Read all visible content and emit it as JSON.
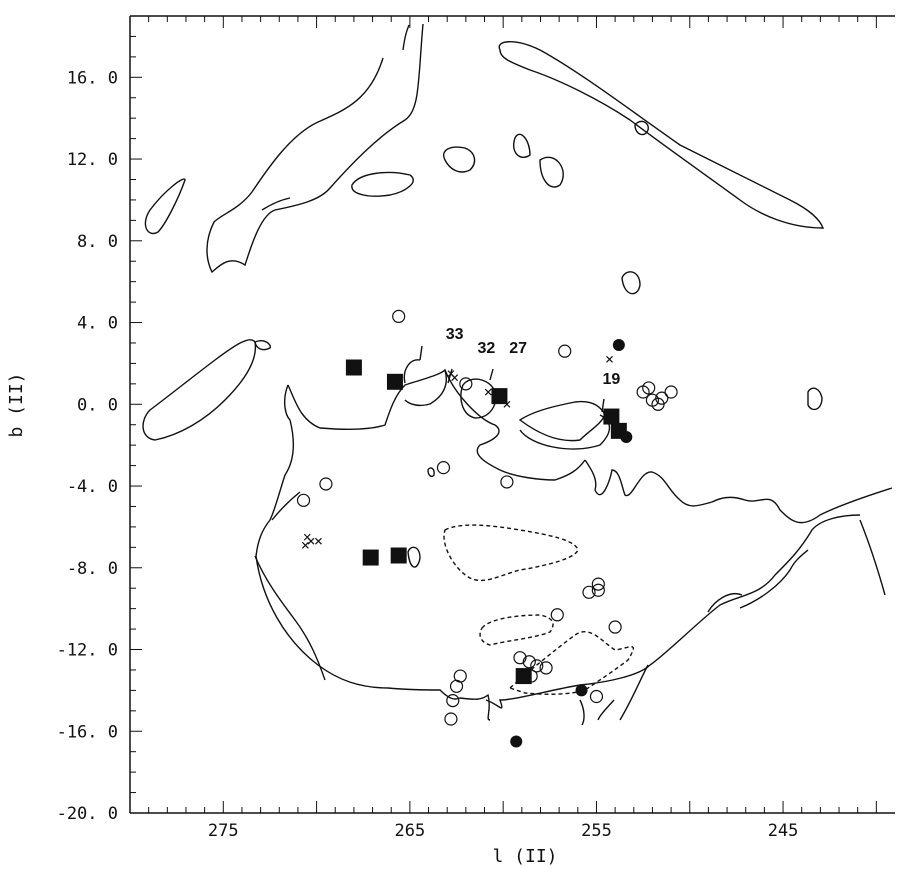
{
  "chart_data": {
    "type": "scatter",
    "title": "",
    "xlabel": "l (II)",
    "ylabel": "b (II)",
    "xlim": [
      280,
      239
    ],
    "ylim": [
      -20,
      19
    ],
    "x_ticks": [
      {
        "value": 275,
        "label": "275"
      },
      {
        "value": 265,
        "label": "265"
      },
      {
        "value": 255,
        "label": "255"
      },
      {
        "value": 245,
        "label": "245"
      }
    ],
    "y_ticks": [
      {
        "value": 16,
        "label": "16. 0"
      },
      {
        "value": 12,
        "label": "12. 0"
      },
      {
        "value": 8,
        "label": "8. 0"
      },
      {
        "value": 4,
        "label": "4. 0"
      },
      {
        "value": 0,
        "label": "0. 0"
      },
      {
        "value": -4,
        "label": "-4. 0"
      },
      {
        "value": -8,
        "label": "-8. 0"
      },
      {
        "value": -12,
        "label": "-12. 0"
      },
      {
        "value": -16,
        "label": "-16. 0"
      },
      {
        "value": -20,
        "label": "-20. 0"
      }
    ],
    "series": [
      {
        "marker": "filled-square",
        "points": [
          [
            268.0,
            1.8
          ],
          [
            265.8,
            1.1
          ],
          [
            260.2,
            0.4
          ],
          [
            254.2,
            -0.6
          ],
          [
            253.8,
            -1.3
          ],
          [
            267.1,
            -7.5
          ],
          [
            265.6,
            -7.4
          ],
          [
            258.9,
            -13.3
          ]
        ]
      },
      {
        "marker": "filled-circle",
        "points": [
          [
            253.8,
            2.9
          ],
          [
            253.4,
            -1.6
          ],
          [
            255.8,
            -14.0
          ],
          [
            259.3,
            -16.5
          ]
        ]
      },
      {
        "marker": "open-circle",
        "points": [
          [
            265.6,
            4.3
          ],
          [
            262.0,
            1.0
          ],
          [
            256.7,
            2.6
          ],
          [
            252.5,
            0.6
          ],
          [
            252.2,
            0.8
          ],
          [
            252.0,
            0.2
          ],
          [
            251.7,
            0.0
          ],
          [
            251.5,
            0.3
          ],
          [
            251.0,
            0.6
          ],
          [
            263.2,
            -3.1
          ],
          [
            259.8,
            -3.8
          ],
          [
            269.5,
            -3.9
          ],
          [
            270.7,
            -4.7
          ],
          [
            259.1,
            -12.4
          ],
          [
            258.6,
            -12.6
          ],
          [
            258.2,
            -12.8
          ],
          [
            257.7,
            -12.9
          ],
          [
            258.5,
            -13.3
          ],
          [
            257.1,
            -10.3
          ],
          [
            255.4,
            -9.2
          ],
          [
            254.9,
            -8.8
          ],
          [
            254.9,
            -9.1
          ],
          [
            254.0,
            -10.9
          ],
          [
            262.3,
            -13.3
          ],
          [
            262.5,
            -13.8
          ],
          [
            262.7,
            -14.5
          ],
          [
            262.8,
            -15.4
          ],
          [
            255.0,
            -14.3
          ]
        ]
      },
      {
        "marker": "cross",
        "points": [
          [
            262.8,
            1.5
          ],
          [
            262.6,
            1.3
          ],
          [
            260.8,
            0.6
          ],
          [
            259.8,
            0.0
          ],
          [
            254.3,
            2.2
          ],
          [
            270.5,
            -6.5
          ],
          [
            270.3,
            -6.7
          ],
          [
            270.6,
            -6.9
          ],
          [
            269.9,
            -6.7
          ]
        ]
      }
    ],
    "annotations": [
      {
        "text": "33",
        "x": 262.6,
        "y": 3.2
      },
      {
        "text": "32",
        "x": 260.9,
        "y": 2.5
      },
      {
        "text": "27",
        "x": 259.2,
        "y": 2.5
      },
      {
        "text": "19",
        "x": 254.2,
        "y": 1.0
      }
    ],
    "grid": false
  }
}
